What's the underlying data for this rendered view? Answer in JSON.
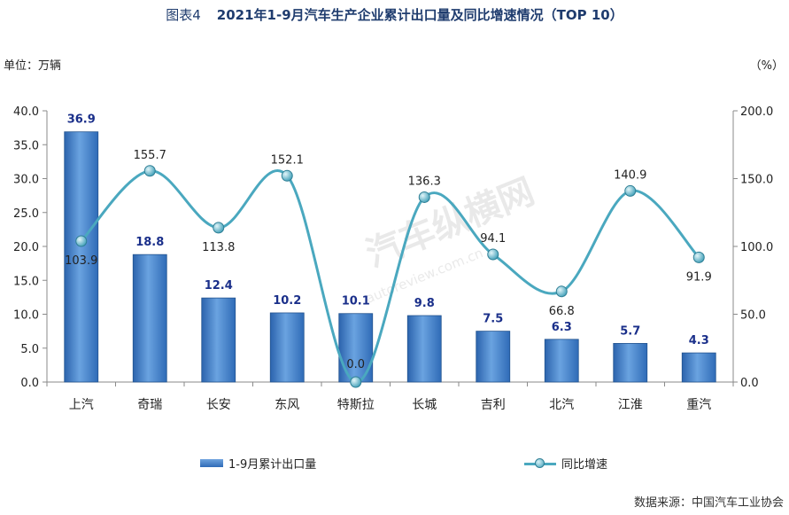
{
  "figure": {
    "prefix": "图表4",
    "title": "2021年1-9月汽车生产企业累计出口量及同比增速情况（TOP 10）",
    "left_unit": "单位：万辆",
    "right_unit": "（%）",
    "source": "数据来源：中国汽车工业协会",
    "watermark": "汽车纵横网",
    "watermark_sub": "autoreview.com.cn"
  },
  "chart_data": {
    "type": "bar",
    "categories": [
      "上汽",
      "奇瑞",
      "长安",
      "东风",
      "特斯拉",
      "长城",
      "吉利",
      "北汽",
      "江淮",
      "重汽"
    ],
    "series": [
      {
        "name": "1-9月累计出口量",
        "type": "bar",
        "axis": "left",
        "values": [
          36.9,
          18.8,
          12.4,
          10.2,
          10.1,
          9.8,
          7.5,
          6.3,
          5.7,
          4.3
        ],
        "labels": [
          "36.9",
          "18.8",
          "12.4",
          "10.2",
          "10.1",
          "9.8",
          "7.5",
          "6.3",
          "5.7",
          "4.3"
        ],
        "color": "#3b7cc6"
      },
      {
        "name": "同比增速",
        "type": "line",
        "axis": "right",
        "values": [
          103.9,
          155.7,
          113.8,
          152.1,
          0.0,
          136.3,
          94.1,
          66.8,
          140.9,
          91.9
        ],
        "labels": [
          "103.9",
          "155.7",
          "113.8",
          "152.1",
          "0.0",
          "136.3",
          "94.1",
          "66.8",
          "140.9",
          "91.9"
        ],
        "color": "#4aa8bf",
        "smooth": true
      }
    ],
    "y_left": {
      "lim": [
        0,
        40
      ],
      "ticks": [
        "0.0",
        "5.0",
        "10.0",
        "15.0",
        "20.0",
        "25.0",
        "30.0",
        "35.0",
        "40.0"
      ]
    },
    "y_right": {
      "lim": [
        0,
        200
      ],
      "ticks": [
        "0.0",
        "50.0",
        "100.0",
        "150.0",
        "200.0"
      ]
    },
    "grid": false,
    "legend_position": "bottom"
  }
}
